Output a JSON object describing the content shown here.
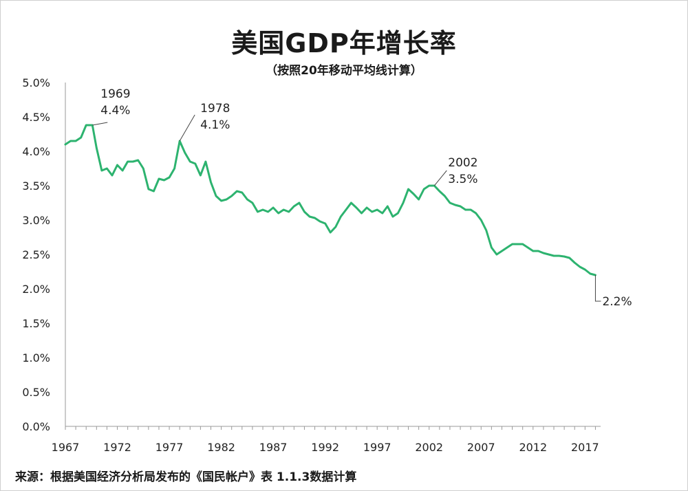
{
  "chart_data": {
    "type": "line",
    "title": "美国GDP年增长率",
    "subtitle": "（按照20年移动平均线计算）",
    "source": "来源：根据美国经济分析局发布的《国民帐户》表 1.1.3数据计算",
    "xlabel": "",
    "ylabel": "",
    "xlim": [
      1967,
      2018.5
    ],
    "ylim": [
      0,
      5
    ],
    "x_ticks": [
      "1967",
      "1972",
      "1977",
      "1982",
      "1987",
      "1992",
      "1997",
      "2002",
      "2007",
      "2012",
      "2017"
    ],
    "y_ticks": [
      "0.0%",
      "0.5%",
      "1.0%",
      "1.5%",
      "2.0%",
      "2.5%",
      "3.0%",
      "3.5%",
      "4.0%",
      "4.5%",
      "5.0%"
    ],
    "line_color": "#2db36f",
    "series": [
      {
        "name": "美国GDP年增长率（20年移动平均）",
        "x": [
          1967,
          1967.5,
          1968,
          1968.5,
          1969,
          1969.3,
          1969.6,
          1970,
          1970.5,
          1971,
          1971.5,
          1972,
          1972.5,
          1973,
          1973.5,
          1974,
          1974.5,
          1975,
          1975.5,
          1976,
          1976.5,
          1977,
          1977.5,
          1978,
          1978.5,
          1979,
          1979.5,
          1980,
          1980.5,
          1981,
          1981.5,
          1982,
          1982.5,
          1983,
          1983.5,
          1984,
          1984.5,
          1985,
          1985.5,
          1986,
          1986.5,
          1987,
          1987.5,
          1988,
          1988.5,
          1989,
          1989.5,
          1990,
          1990.5,
          1991,
          1991.5,
          1992,
          1992.5,
          1993,
          1993.5,
          1994,
          1994.5,
          1995,
          1995.5,
          1996,
          1996.5,
          1997,
          1997.5,
          1998,
          1998.5,
          1999,
          1999.5,
          2000,
          2000.5,
          2001,
          2001.5,
          2002,
          2002.5,
          2003,
          2003.5,
          2004,
          2004.5,
          2005,
          2005.5,
          2006,
          2006.5,
          2007,
          2007.5,
          2008,
          2008.5,
          2009,
          2009.5,
          2010,
          2010.5,
          2011,
          2011.5,
          2012,
          2012.5,
          2013,
          2013.5,
          2014,
          2014.5,
          2015,
          2015.5,
          2016,
          2016.5,
          2017,
          2017.5,
          2018
        ],
        "y": [
          4.1,
          4.15,
          4.15,
          4.2,
          4.38,
          4.38,
          4.38,
          4.05,
          3.72,
          3.75,
          3.65,
          3.8,
          3.72,
          3.85,
          3.85,
          3.87,
          3.75,
          3.45,
          3.42,
          3.6,
          3.58,
          3.62,
          3.75,
          4.15,
          3.98,
          3.85,
          3.82,
          3.65,
          3.85,
          3.55,
          3.35,
          3.28,
          3.3,
          3.35,
          3.42,
          3.4,
          3.3,
          3.25,
          3.12,
          3.15,
          3.12,
          3.18,
          3.1,
          3.15,
          3.12,
          3.2,
          3.25,
          3.12,
          3.05,
          3.03,
          2.98,
          2.95,
          2.82,
          2.9,
          3.05,
          3.15,
          3.25,
          3.18,
          3.1,
          3.18,
          3.12,
          3.15,
          3.1,
          3.2,
          3.05,
          3.1,
          3.25,
          3.45,
          3.38,
          3.3,
          3.45,
          3.5,
          3.5,
          3.42,
          3.35,
          3.25,
          3.22,
          3.2,
          3.15,
          3.15,
          3.1,
          3.0,
          2.85,
          2.6,
          2.5,
          2.55,
          2.6,
          2.65,
          2.65,
          2.65,
          2.6,
          2.55,
          2.55,
          2.52,
          2.5,
          2.48,
          2.48,
          2.47,
          2.45,
          2.38,
          2.32,
          2.28,
          2.22,
          2.2
        ]
      }
    ],
    "annotations": [
      {
        "year": "1969",
        "value": "4.4%",
        "x": 1969.6,
        "y": 4.38
      },
      {
        "year": "1978",
        "value": "4.1%",
        "x": 1978.0,
        "y": 4.15
      },
      {
        "year": "2002",
        "value": "3.5%",
        "x": 2002.5,
        "y": 3.5
      },
      {
        "year": "",
        "value": "2.2%",
        "x": 2018.0,
        "y": 2.2
      }
    ]
  }
}
